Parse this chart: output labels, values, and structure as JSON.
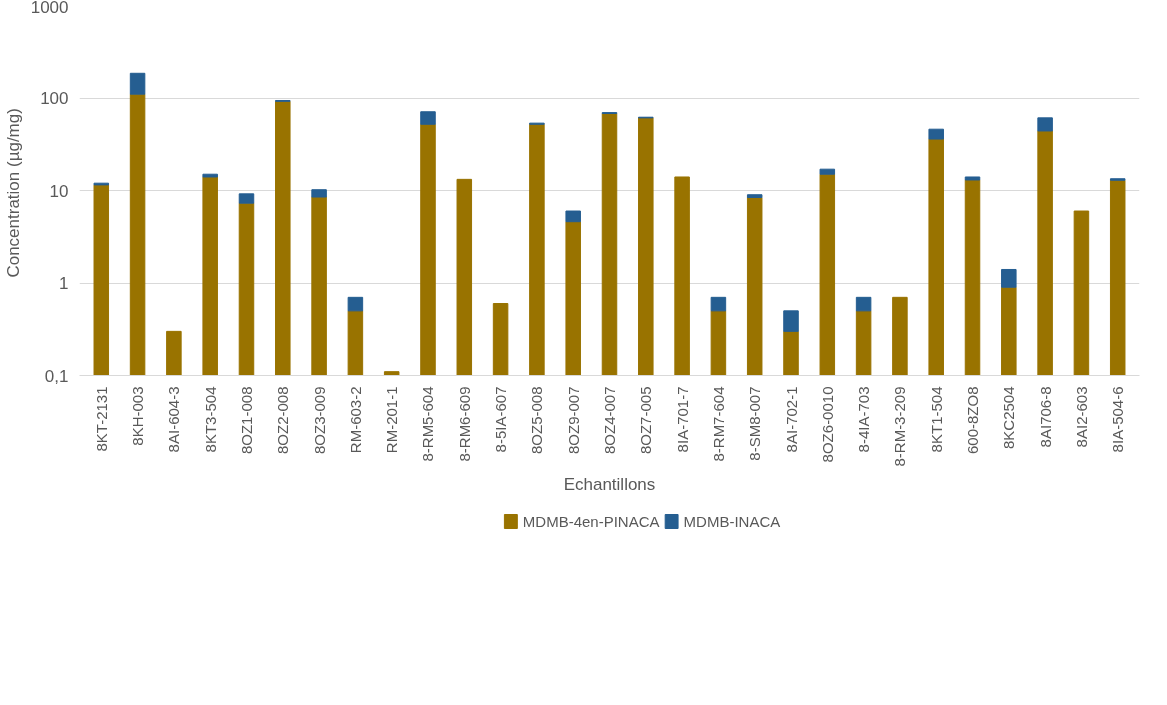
{
  "chart_data": {
    "type": "bar",
    "stacked": true,
    "log": "y",
    "xlabel": "Echantillons",
    "ylabel": "Concentration  (µg/mg)",
    "categories": [
      "8KT-2131",
      "8KH-003",
      "8AI-604-3",
      "8KT3-504",
      "8OZ1-008",
      "8OZ2-008",
      "8OZ3-009",
      "RM-603-2",
      "RM-201-1",
      "8-RM5-604",
      "8-RM6-609",
      "8-5IA-607",
      "8OZ5-008",
      "8OZ9-007",
      "8OZ4-007",
      "8OZ7-005",
      "8IA-701-7",
      "8-RM7-604",
      "8-SM8-007",
      "8AI-702-1",
      "8OZ6-0010",
      "8-4IA-703",
      "8-RM-3-209",
      "8KT1-504",
      "600-8ZO8",
      "8KC2504",
      "8AI706-8",
      "8AI2-603",
      "8IA-504-6"
    ],
    "series": [
      {
        "name": "MDMB-4en-PINACA",
        "color": "#997300",
        "values": [
          11.5,
          110,
          0.3,
          14,
          7.3,
          92,
          8.5,
          0.5,
          0.11,
          52,
          13.2,
          0.6,
          52,
          4.6,
          68,
          61,
          14,
          0.5,
          8.4,
          0.3,
          15,
          0.5,
          0.7,
          36,
          13,
          0.9,
          44,
          6,
          12.9
        ]
      },
      {
        "name": "MDMB-INACA",
        "color": "#255e91",
        "values": [
          0.5,
          75,
          null,
          1,
          1.9,
          2,
          1.7,
          0.2,
          null,
          19,
          null,
          null,
          1.5,
          1.4,
          1.5,
          1,
          null,
          0.2,
          0.6,
          0.2,
          2,
          0.2,
          null,
          10,
          1,
          0.5,
          17,
          null,
          0.5
        ]
      }
    ],
    "ylim": [
      0.1,
      1000
    ],
    "yticks": [
      {
        "value": 0.1,
        "label": "0,1"
      },
      1,
      10,
      100,
      1000
    ],
    "grid": "y",
    "legend": "bottom"
  }
}
